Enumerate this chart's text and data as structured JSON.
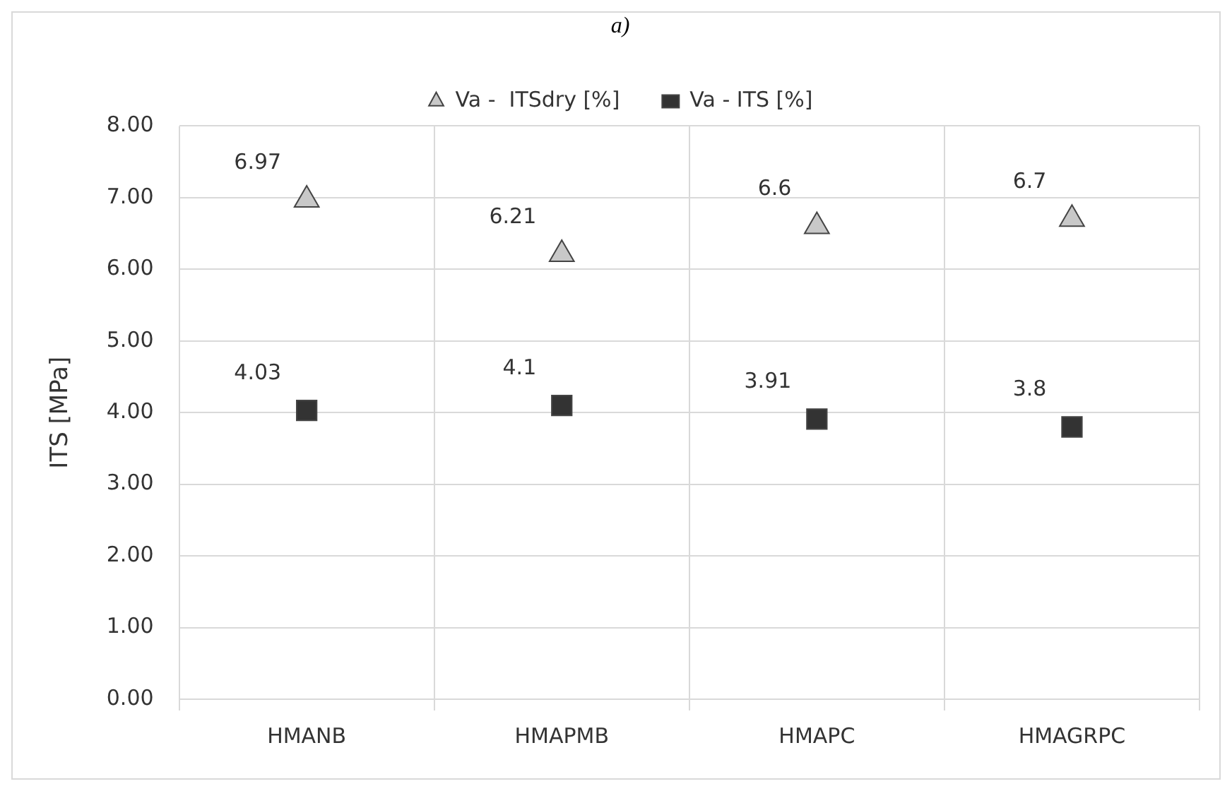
{
  "chart_data": {
    "type": "scatter",
    "title": "a)",
    "ylabel": "ITS [MPa]",
    "categories": [
      "HMANB",
      "HMAPMB",
      "HMAPC",
      "HMAGRPC"
    ],
    "series": [
      {
        "name": "Va -  ITSdry [%]",
        "color": "#c8c8c8",
        "marker": "triangle",
        "values": [
          6.97,
          6.21,
          6.6,
          6.7
        ]
      },
      {
        "name": "Va - ITS [%]",
        "color": "#333333",
        "marker": "square",
        "values": [
          4.03,
          4.1,
          3.91,
          3.8
        ]
      }
    ],
    "ylim": [
      0,
      8
    ],
    "yticks": [
      {
        "value": 0,
        "label": "0.00"
      },
      {
        "value": 1,
        "label": "1.00"
      },
      {
        "value": 2,
        "label": "2.00"
      },
      {
        "value": 3,
        "label": "3.00"
      },
      {
        "value": 4,
        "label": "4.00"
      },
      {
        "value": 5,
        "label": "5.00"
      },
      {
        "value": 6,
        "label": "6.00"
      },
      {
        "value": 7,
        "label": "7.00"
      },
      {
        "value": 8,
        "label": "8.00"
      }
    ],
    "grid": true,
    "legend": "top",
    "data_labels": true
  }
}
